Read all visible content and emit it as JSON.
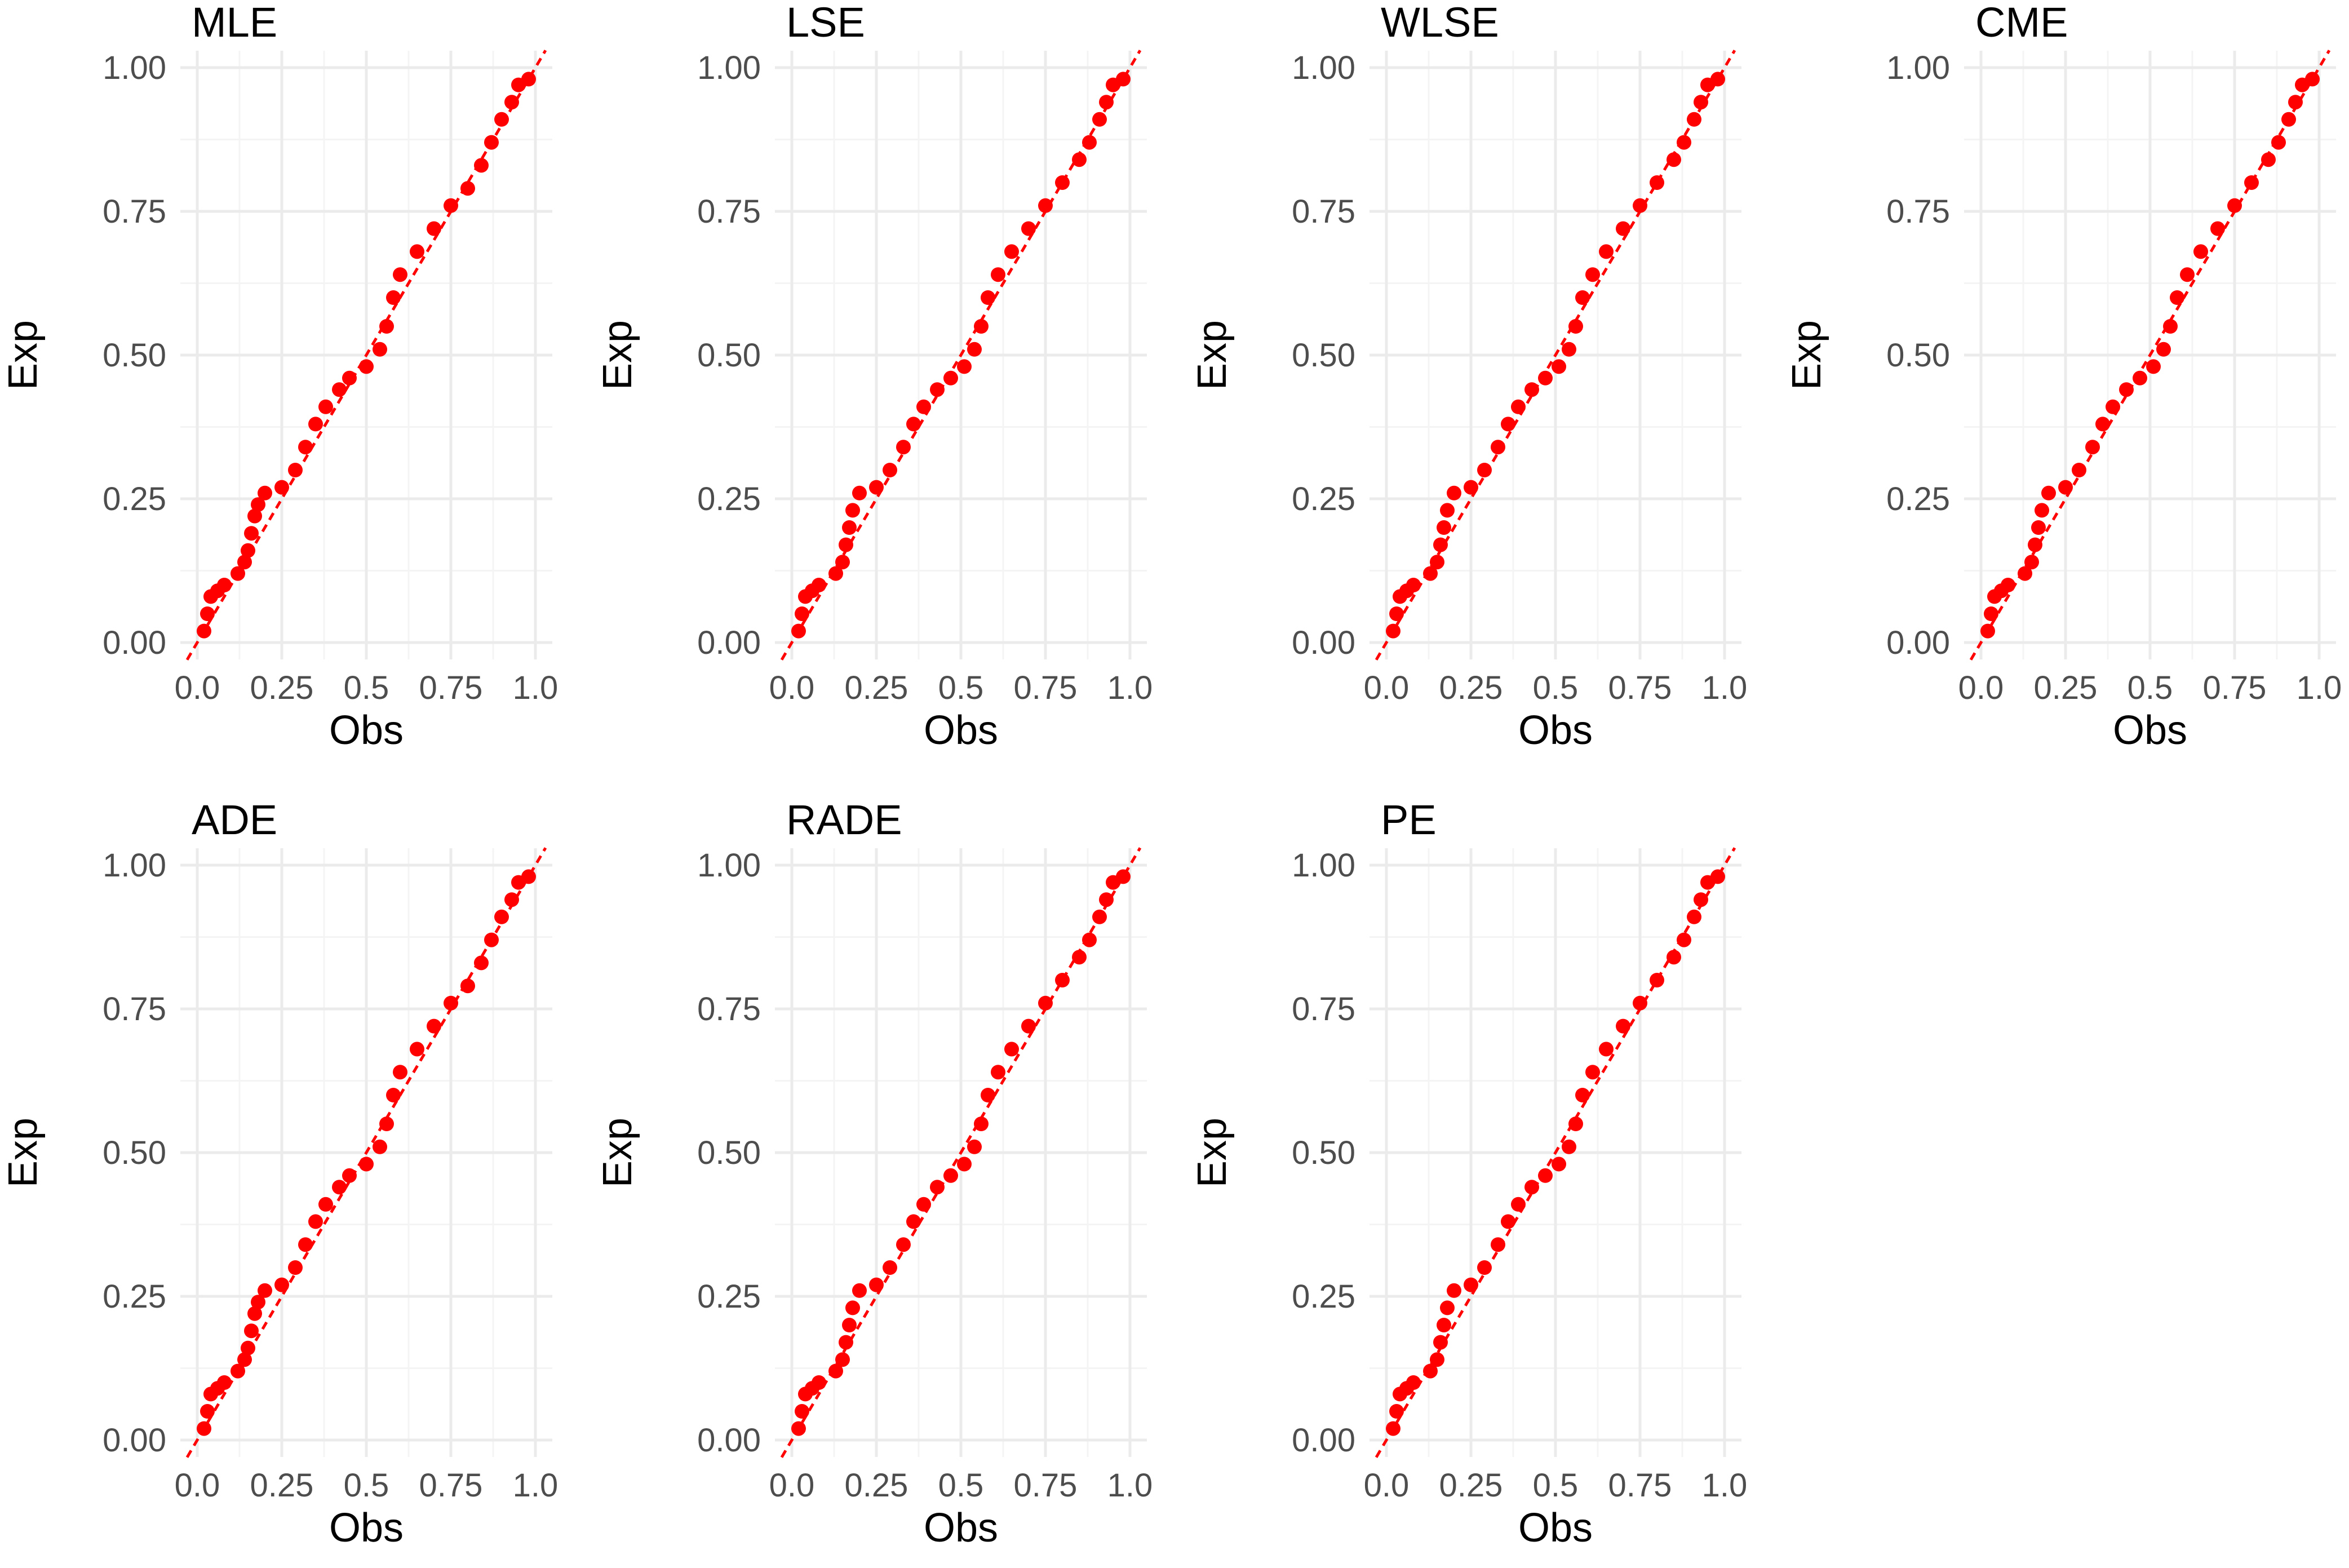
{
  "chart_data": [
    {
      "type": "scatter",
      "title": "MLE",
      "xlabel": "Obs",
      "ylabel": "Exp",
      "xlim": [
        0,
        1
      ],
      "ylim": [
        0,
        1
      ],
      "x_ticks": [
        "0.0",
        "0.25",
        "0.5",
        "0.75",
        "1.0"
      ],
      "y_ticks": [
        "0.00",
        "0.25",
        "0.50",
        "0.75",
        "1.00"
      ],
      "grid": true,
      "reference_line": "y = x",
      "point_color": "#ff0000",
      "points": [
        [
          0.02,
          0.02
        ],
        [
          0.03,
          0.05
        ],
        [
          0.04,
          0.08
        ],
        [
          0.06,
          0.09
        ],
        [
          0.08,
          0.1
        ],
        [
          0.12,
          0.12
        ],
        [
          0.14,
          0.14
        ],
        [
          0.15,
          0.16
        ],
        [
          0.16,
          0.19
        ],
        [
          0.17,
          0.22
        ],
        [
          0.18,
          0.24
        ],
        [
          0.2,
          0.26
        ],
        [
          0.25,
          0.27
        ],
        [
          0.29,
          0.3
        ],
        [
          0.32,
          0.34
        ],
        [
          0.35,
          0.38
        ],
        [
          0.38,
          0.41
        ],
        [
          0.42,
          0.44
        ],
        [
          0.45,
          0.46
        ],
        [
          0.5,
          0.48
        ],
        [
          0.54,
          0.51
        ],
        [
          0.56,
          0.55
        ],
        [
          0.58,
          0.6
        ],
        [
          0.6,
          0.64
        ],
        [
          0.65,
          0.68
        ],
        [
          0.7,
          0.72
        ],
        [
          0.75,
          0.76
        ],
        [
          0.8,
          0.79
        ],
        [
          0.84,
          0.83
        ],
        [
          0.87,
          0.87
        ],
        [
          0.9,
          0.91
        ],
        [
          0.93,
          0.94
        ],
        [
          0.95,
          0.97
        ],
        [
          0.98,
          0.98
        ]
      ]
    },
    {
      "type": "scatter",
      "title": "LSE",
      "xlabel": "Obs",
      "ylabel": "Exp",
      "xlim": [
        0,
        1
      ],
      "ylim": [
        0,
        1
      ],
      "x_ticks": [
        "0.0",
        "0.25",
        "0.5",
        "0.75",
        "1.0"
      ],
      "y_ticks": [
        "0.00",
        "0.25",
        "0.50",
        "0.75",
        "1.00"
      ],
      "grid": true,
      "reference_line": "y = x",
      "point_color": "#ff0000",
      "points": [
        [
          0.02,
          0.02
        ],
        [
          0.03,
          0.05
        ],
        [
          0.04,
          0.08
        ],
        [
          0.06,
          0.09
        ],
        [
          0.08,
          0.1
        ],
        [
          0.13,
          0.12
        ],
        [
          0.15,
          0.14
        ],
        [
          0.16,
          0.17
        ],
        [
          0.17,
          0.2
        ],
        [
          0.18,
          0.23
        ],
        [
          0.2,
          0.26
        ],
        [
          0.25,
          0.27
        ],
        [
          0.29,
          0.3
        ],
        [
          0.33,
          0.34
        ],
        [
          0.36,
          0.38
        ],
        [
          0.39,
          0.41
        ],
        [
          0.43,
          0.44
        ],
        [
          0.47,
          0.46
        ],
        [
          0.51,
          0.48
        ],
        [
          0.54,
          0.51
        ],
        [
          0.56,
          0.55
        ],
        [
          0.58,
          0.6
        ],
        [
          0.61,
          0.64
        ],
        [
          0.65,
          0.68
        ],
        [
          0.7,
          0.72
        ],
        [
          0.75,
          0.76
        ],
        [
          0.8,
          0.8
        ],
        [
          0.85,
          0.84
        ],
        [
          0.88,
          0.87
        ],
        [
          0.91,
          0.91
        ],
        [
          0.93,
          0.94
        ],
        [
          0.95,
          0.97
        ],
        [
          0.98,
          0.98
        ]
      ]
    },
    {
      "type": "scatter",
      "title": "WLSE",
      "xlabel": "Obs",
      "ylabel": "Exp",
      "xlim": [
        0,
        1
      ],
      "ylim": [
        0,
        1
      ],
      "x_ticks": [
        "0.0",
        "0.25",
        "0.5",
        "0.75",
        "1.0"
      ],
      "y_ticks": [
        "0.00",
        "0.25",
        "0.50",
        "0.75",
        "1.00"
      ],
      "grid": true,
      "reference_line": "y = x",
      "point_color": "#ff0000",
      "points": [
        [
          0.02,
          0.02
        ],
        [
          0.03,
          0.05
        ],
        [
          0.04,
          0.08
        ],
        [
          0.06,
          0.09
        ],
        [
          0.08,
          0.1
        ],
        [
          0.13,
          0.12
        ],
        [
          0.15,
          0.14
        ],
        [
          0.16,
          0.17
        ],
        [
          0.17,
          0.2
        ],
        [
          0.18,
          0.23
        ],
        [
          0.2,
          0.26
        ],
        [
          0.25,
          0.27
        ],
        [
          0.29,
          0.3
        ],
        [
          0.33,
          0.34
        ],
        [
          0.36,
          0.38
        ],
        [
          0.39,
          0.41
        ],
        [
          0.43,
          0.44
        ],
        [
          0.47,
          0.46
        ],
        [
          0.51,
          0.48
        ],
        [
          0.54,
          0.51
        ],
        [
          0.56,
          0.55
        ],
        [
          0.58,
          0.6
        ],
        [
          0.61,
          0.64
        ],
        [
          0.65,
          0.68
        ],
        [
          0.7,
          0.72
        ],
        [
          0.75,
          0.76
        ],
        [
          0.8,
          0.8
        ],
        [
          0.85,
          0.84
        ],
        [
          0.88,
          0.87
        ],
        [
          0.91,
          0.91
        ],
        [
          0.93,
          0.94
        ],
        [
          0.95,
          0.97
        ],
        [
          0.98,
          0.98
        ]
      ]
    },
    {
      "type": "scatter",
      "title": "CME",
      "xlabel": "Obs",
      "ylabel": "Exp",
      "xlim": [
        0,
        1
      ],
      "ylim": [
        0,
        1
      ],
      "x_ticks": [
        "0.0",
        "0.25",
        "0.5",
        "0.75",
        "1.0"
      ],
      "y_ticks": [
        "0.00",
        "0.25",
        "0.50",
        "0.75",
        "1.00"
      ],
      "grid": true,
      "reference_line": "y = x",
      "point_color": "#ff0000",
      "points": [
        [
          0.02,
          0.02
        ],
        [
          0.03,
          0.05
        ],
        [
          0.04,
          0.08
        ],
        [
          0.06,
          0.09
        ],
        [
          0.08,
          0.1
        ],
        [
          0.13,
          0.12
        ],
        [
          0.15,
          0.14
        ],
        [
          0.16,
          0.17
        ],
        [
          0.17,
          0.2
        ],
        [
          0.18,
          0.23
        ],
        [
          0.2,
          0.26
        ],
        [
          0.25,
          0.27
        ],
        [
          0.29,
          0.3
        ],
        [
          0.33,
          0.34
        ],
        [
          0.36,
          0.38
        ],
        [
          0.39,
          0.41
        ],
        [
          0.43,
          0.44
        ],
        [
          0.47,
          0.46
        ],
        [
          0.51,
          0.48
        ],
        [
          0.54,
          0.51
        ],
        [
          0.56,
          0.55
        ],
        [
          0.58,
          0.6
        ],
        [
          0.61,
          0.64
        ],
        [
          0.65,
          0.68
        ],
        [
          0.7,
          0.72
        ],
        [
          0.75,
          0.76
        ],
        [
          0.8,
          0.8
        ],
        [
          0.85,
          0.84
        ],
        [
          0.88,
          0.87
        ],
        [
          0.91,
          0.91
        ],
        [
          0.93,
          0.94
        ],
        [
          0.95,
          0.97
        ],
        [
          0.98,
          0.98
        ]
      ]
    },
    {
      "type": "scatter",
      "title": "ADE",
      "xlabel": "Obs",
      "ylabel": "Exp",
      "xlim": [
        0,
        1
      ],
      "ylim": [
        0,
        1
      ],
      "x_ticks": [
        "0.0",
        "0.25",
        "0.5",
        "0.75",
        "1.0"
      ],
      "y_ticks": [
        "0.00",
        "0.25",
        "0.50",
        "0.75",
        "1.00"
      ],
      "grid": true,
      "reference_line": "y = x",
      "point_color": "#ff0000",
      "points": [
        [
          0.02,
          0.02
        ],
        [
          0.03,
          0.05
        ],
        [
          0.04,
          0.08
        ],
        [
          0.06,
          0.09
        ],
        [
          0.08,
          0.1
        ],
        [
          0.12,
          0.12
        ],
        [
          0.14,
          0.14
        ],
        [
          0.15,
          0.16
        ],
        [
          0.16,
          0.19
        ],
        [
          0.17,
          0.22
        ],
        [
          0.18,
          0.24
        ],
        [
          0.2,
          0.26
        ],
        [
          0.25,
          0.27
        ],
        [
          0.29,
          0.3
        ],
        [
          0.32,
          0.34
        ],
        [
          0.35,
          0.38
        ],
        [
          0.38,
          0.41
        ],
        [
          0.42,
          0.44
        ],
        [
          0.45,
          0.46
        ],
        [
          0.5,
          0.48
        ],
        [
          0.54,
          0.51
        ],
        [
          0.56,
          0.55
        ],
        [
          0.58,
          0.6
        ],
        [
          0.6,
          0.64
        ],
        [
          0.65,
          0.68
        ],
        [
          0.7,
          0.72
        ],
        [
          0.75,
          0.76
        ],
        [
          0.8,
          0.79
        ],
        [
          0.84,
          0.83
        ],
        [
          0.87,
          0.87
        ],
        [
          0.9,
          0.91
        ],
        [
          0.93,
          0.94
        ],
        [
          0.95,
          0.97
        ],
        [
          0.98,
          0.98
        ]
      ]
    },
    {
      "type": "scatter",
      "title": "RADE",
      "xlabel": "Obs",
      "ylabel": "Exp",
      "xlim": [
        0,
        1
      ],
      "ylim": [
        0,
        1
      ],
      "x_ticks": [
        "0.0",
        "0.25",
        "0.5",
        "0.75",
        "1.0"
      ],
      "y_ticks": [
        "0.00",
        "0.25",
        "0.50",
        "0.75",
        "1.00"
      ],
      "grid": true,
      "reference_line": "y = x",
      "point_color": "#ff0000",
      "points": [
        [
          0.02,
          0.02
        ],
        [
          0.03,
          0.05
        ],
        [
          0.04,
          0.08
        ],
        [
          0.06,
          0.09
        ],
        [
          0.08,
          0.1
        ],
        [
          0.13,
          0.12
        ],
        [
          0.15,
          0.14
        ],
        [
          0.16,
          0.17
        ],
        [
          0.17,
          0.2
        ],
        [
          0.18,
          0.23
        ],
        [
          0.2,
          0.26
        ],
        [
          0.25,
          0.27
        ],
        [
          0.29,
          0.3
        ],
        [
          0.33,
          0.34
        ],
        [
          0.36,
          0.38
        ],
        [
          0.39,
          0.41
        ],
        [
          0.43,
          0.44
        ],
        [
          0.47,
          0.46
        ],
        [
          0.51,
          0.48
        ],
        [
          0.54,
          0.51
        ],
        [
          0.56,
          0.55
        ],
        [
          0.58,
          0.6
        ],
        [
          0.61,
          0.64
        ],
        [
          0.65,
          0.68
        ],
        [
          0.7,
          0.72
        ],
        [
          0.75,
          0.76
        ],
        [
          0.8,
          0.8
        ],
        [
          0.85,
          0.84
        ],
        [
          0.88,
          0.87
        ],
        [
          0.91,
          0.91
        ],
        [
          0.93,
          0.94
        ],
        [
          0.95,
          0.97
        ],
        [
          0.98,
          0.98
        ]
      ]
    },
    {
      "type": "scatter",
      "title": "PE",
      "xlabel": "Obs",
      "ylabel": "Exp",
      "xlim": [
        0,
        1
      ],
      "ylim": [
        0,
        1
      ],
      "x_ticks": [
        "0.0",
        "0.25",
        "0.5",
        "0.75",
        "1.0"
      ],
      "y_ticks": [
        "0.00",
        "0.25",
        "0.50",
        "0.75",
        "1.00"
      ],
      "grid": true,
      "reference_line": "y = x",
      "point_color": "#ff0000",
      "points": [
        [
          0.02,
          0.02
        ],
        [
          0.03,
          0.05
        ],
        [
          0.04,
          0.08
        ],
        [
          0.06,
          0.09
        ],
        [
          0.08,
          0.1
        ],
        [
          0.13,
          0.12
        ],
        [
          0.15,
          0.14
        ],
        [
          0.16,
          0.17
        ],
        [
          0.17,
          0.2
        ],
        [
          0.18,
          0.23
        ],
        [
          0.2,
          0.26
        ],
        [
          0.25,
          0.27
        ],
        [
          0.29,
          0.3
        ],
        [
          0.33,
          0.34
        ],
        [
          0.36,
          0.38
        ],
        [
          0.39,
          0.41
        ],
        [
          0.43,
          0.44
        ],
        [
          0.47,
          0.46
        ],
        [
          0.51,
          0.48
        ],
        [
          0.54,
          0.51
        ],
        [
          0.56,
          0.55
        ],
        [
          0.58,
          0.6
        ],
        [
          0.61,
          0.64
        ],
        [
          0.65,
          0.68
        ],
        [
          0.7,
          0.72
        ],
        [
          0.75,
          0.76
        ],
        [
          0.8,
          0.8
        ],
        [
          0.85,
          0.84
        ],
        [
          0.88,
          0.87
        ],
        [
          0.91,
          0.91
        ],
        [
          0.93,
          0.94
        ],
        [
          0.95,
          0.97
        ],
        [
          0.98,
          0.98
        ]
      ]
    }
  ]
}
